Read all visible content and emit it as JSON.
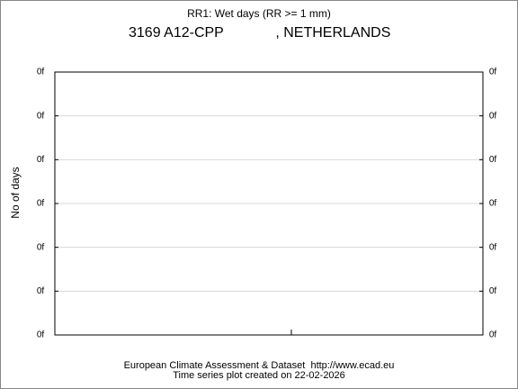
{
  "chart_data": {
    "type": "line",
    "title": "RR1: Wet days (RR >= 1 mm)",
    "subtitle": "3169 A12-CPP             , NETHERLANDS",
    "ylabel": "No of days",
    "footer": [
      "European Climate Assessment & Dataset  http://www.ecad.eu",
      "Time series plot created on 22-02-2026"
    ],
    "series": [],
    "ylim": [
      0,
      6
    ],
    "yticks": [
      {
        "value": 0,
        "label": "0f"
      },
      {
        "value": 1,
        "label": "0f"
      },
      {
        "value": 2,
        "label": "0f"
      },
      {
        "value": 3,
        "label": "0f"
      },
      {
        "value": 4,
        "label": "0f"
      },
      {
        "value": 5,
        "label": "0f"
      },
      {
        "value": 6,
        "label": "0f"
      }
    ],
    "grid": true,
    "right_axis_labels": true
  }
}
